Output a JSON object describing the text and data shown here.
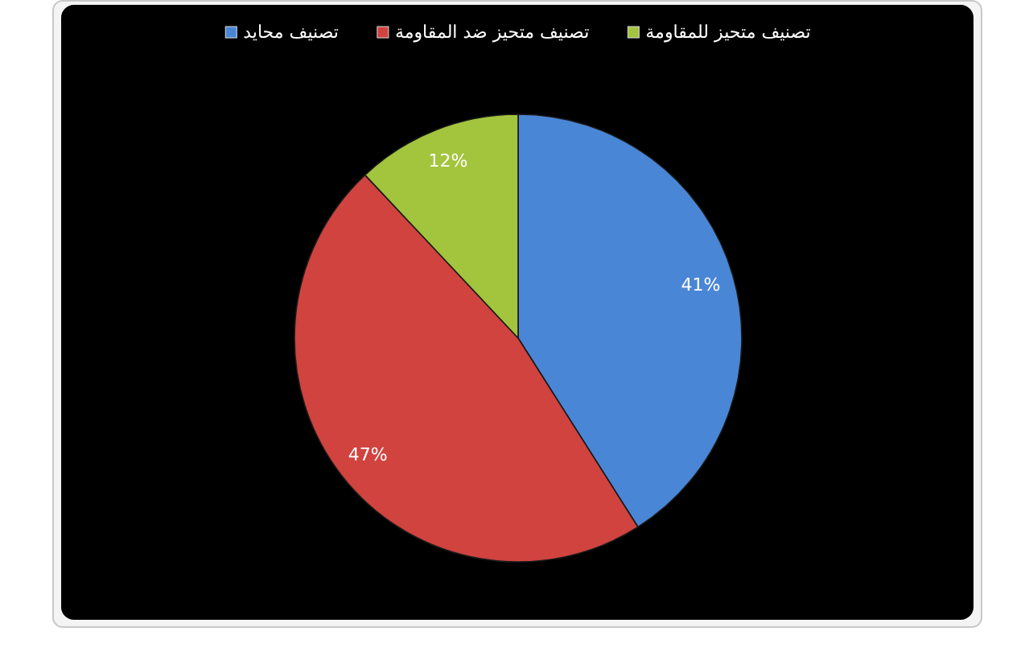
{
  "chart_data": {
    "type": "pie",
    "categories": [
      "تصنيف محايد",
      "تصنيف متحيز ضد المقاومة",
      "تصنيف متحيز للمقاومة"
    ],
    "values": [
      41,
      47,
      12
    ],
    "colors": [
      "#4a86d6",
      "#d0433f",
      "#a3c43d"
    ],
    "value_labels": [
      "41%",
      "47%",
      "12%"
    ],
    "legend": "top"
  }
}
